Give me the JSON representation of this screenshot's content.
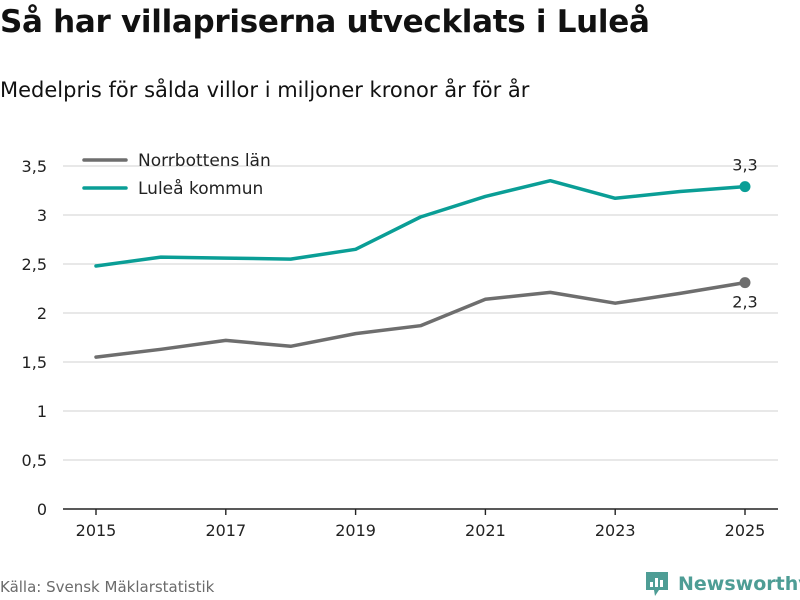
{
  "title": "Så har villapriserna utvecklats i Luleå",
  "subtitle": "Medelpris för sålda villor i miljoner kronor år för år",
  "source": "Källa: Svensk Mäklarstatistik",
  "brand": "Newsworthy",
  "colors": {
    "norrbotten": "#6e6e6e",
    "lulea": "#0a9e96",
    "grid": "#d9d9d9",
    "axis": "#222222",
    "brand": "#4e9d95"
  },
  "chart_data": {
    "type": "line",
    "title": "Så har villapriserna utvecklats i Luleå",
    "subtitle": "Medelpris för sålda villor i miljoner kronor år för år",
    "xlabel": "",
    "ylabel": "",
    "x": [
      2015,
      2016,
      2017,
      2018,
      2019,
      2020,
      2021,
      2022,
      2023,
      2024,
      2025
    ],
    "xticks": [
      "2015",
      "2017",
      "2019",
      "2021",
      "2023",
      "2025"
    ],
    "ylim": [
      0,
      3.5
    ],
    "yticks": [
      "0",
      "0,5",
      "1",
      "1,5",
      "2",
      "2,5",
      "3",
      "3,5"
    ],
    "legend_position": "top-left",
    "grid": true,
    "series": [
      {
        "name": "Norrbottens län",
        "color_key": "norrbotten",
        "values": [
          1.55,
          1.63,
          1.72,
          1.66,
          1.79,
          1.87,
          2.14,
          2.21,
          2.1,
          2.2,
          2.31
        ],
        "end_label": "2,3"
      },
      {
        "name": "Luleå kommun",
        "color_key": "lulea",
        "values": [
          2.48,
          2.57,
          2.56,
          2.55,
          2.65,
          2.98,
          3.19,
          3.35,
          3.17,
          3.24,
          3.29
        ],
        "end_label": "3,3"
      }
    ]
  }
}
